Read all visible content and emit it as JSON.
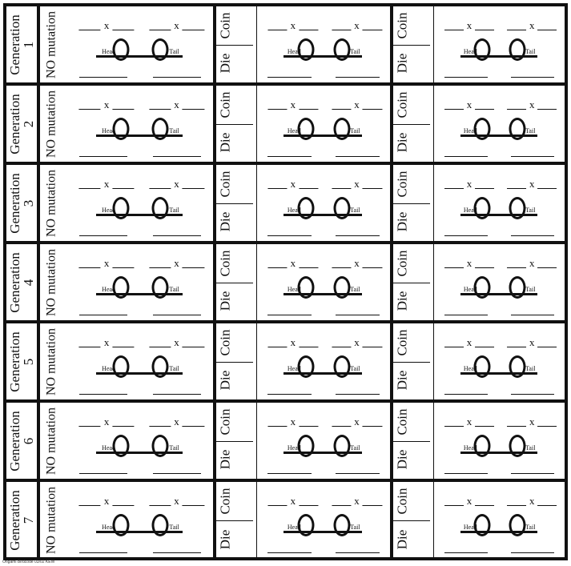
{
  "generation_label": "Generation",
  "generations": [
    "1",
    "2",
    "3",
    "4",
    "5",
    "6",
    "7"
  ],
  "no_mutation_label": "NO mutation",
  "coin_label": "Coin",
  "die_label": "Die",
  "head_label": "Head",
  "tail_label": "Tail",
  "x_label": "x",
  "footer": "Origami Birdcode 03/02 KEW"
}
